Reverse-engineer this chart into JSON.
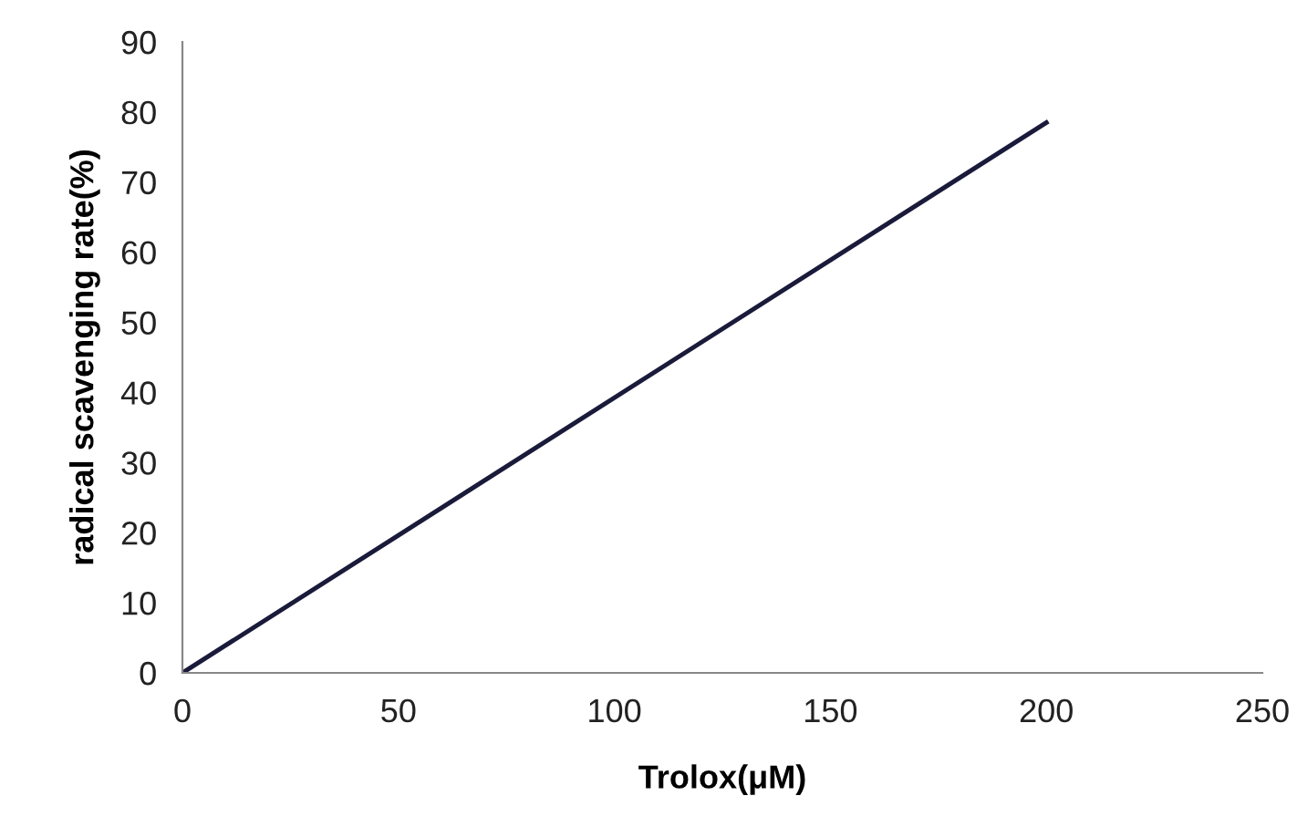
{
  "chart_data": {
    "type": "line",
    "xlabel": "Trolox(μM)",
    "ylabel": "radical scavenging rate(%)",
    "x": [
      0,
      200
    ],
    "series": [
      {
        "color": "#1a1a3a",
        "values": [
          0,
          78.5
        ]
      }
    ],
    "xlim": [
      0,
      250
    ],
    "xticks": [
      0,
      50,
      100,
      150,
      200,
      250
    ],
    "ylim": [
      0,
      90
    ],
    "yticks": [
      0,
      10,
      20,
      30,
      40,
      50,
      60,
      70,
      80,
      90
    ],
    "grid": false,
    "legend": false,
    "marker": "none",
    "line_style": "solid"
  }
}
